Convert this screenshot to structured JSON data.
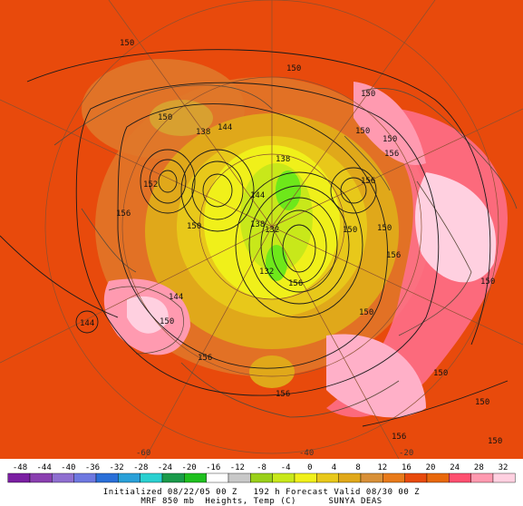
{
  "colors": {
    "background": "#e84a0c",
    "scale": [
      "#7b1fa2",
      "#8a3fb0",
      "#8f6fd0",
      "#6e78e0",
      "#2a6fd8",
      "#2aa0d8",
      "#2ad0d0",
      "#1a9a4a",
      "#1fc01f",
      "#ffffff",
      "#c8c8c8",
      "#9ad01a",
      "#c8e81a",
      "#f0f01a",
      "#e8c81a",
      "#e0a81a",
      "#d89038",
      "#e87a1a",
      "#e84a0c",
      "#e8680c",
      "#ff5070",
      "#ff9ab0",
      "#ffd0e0"
    ],
    "contour": "#1a1a1a",
    "coast": "#5a4a3a",
    "grid": "#8a5030"
  },
  "colorbar": {
    "ticks": [
      "-48",
      "-44",
      "-40",
      "-36",
      "-32",
      "-28",
      "-24",
      "-20",
      "-16",
      "-12",
      "-8",
      "-4",
      "0",
      "4",
      "8",
      "12",
      "16",
      "20",
      "24",
      "28",
      "32"
    ]
  },
  "map": {
    "contour_labels": [
      "150",
      "150",
      "150",
      "150",
      "150",
      "144",
      "138",
      "152",
      "156",
      "150",
      "144",
      "156",
      "138",
      "150",
      "150",
      "156",
      "138",
      "132",
      "150",
      "156",
      "150",
      "144",
      "132",
      "156",
      "150",
      "150",
      "156",
      "150",
      "150",
      "144",
      "156",
      "150",
      "156"
    ],
    "lon_labels": [
      "-60",
      "-40",
      "-20"
    ]
  },
  "caption": {
    "line1": "Initialized 08/22/05 00 Z   192 h Forecast Valid 08/30 00 Z",
    "line2": "MRF 850 mb  Heights, Temp (C)      SUNYA DEAS"
  }
}
